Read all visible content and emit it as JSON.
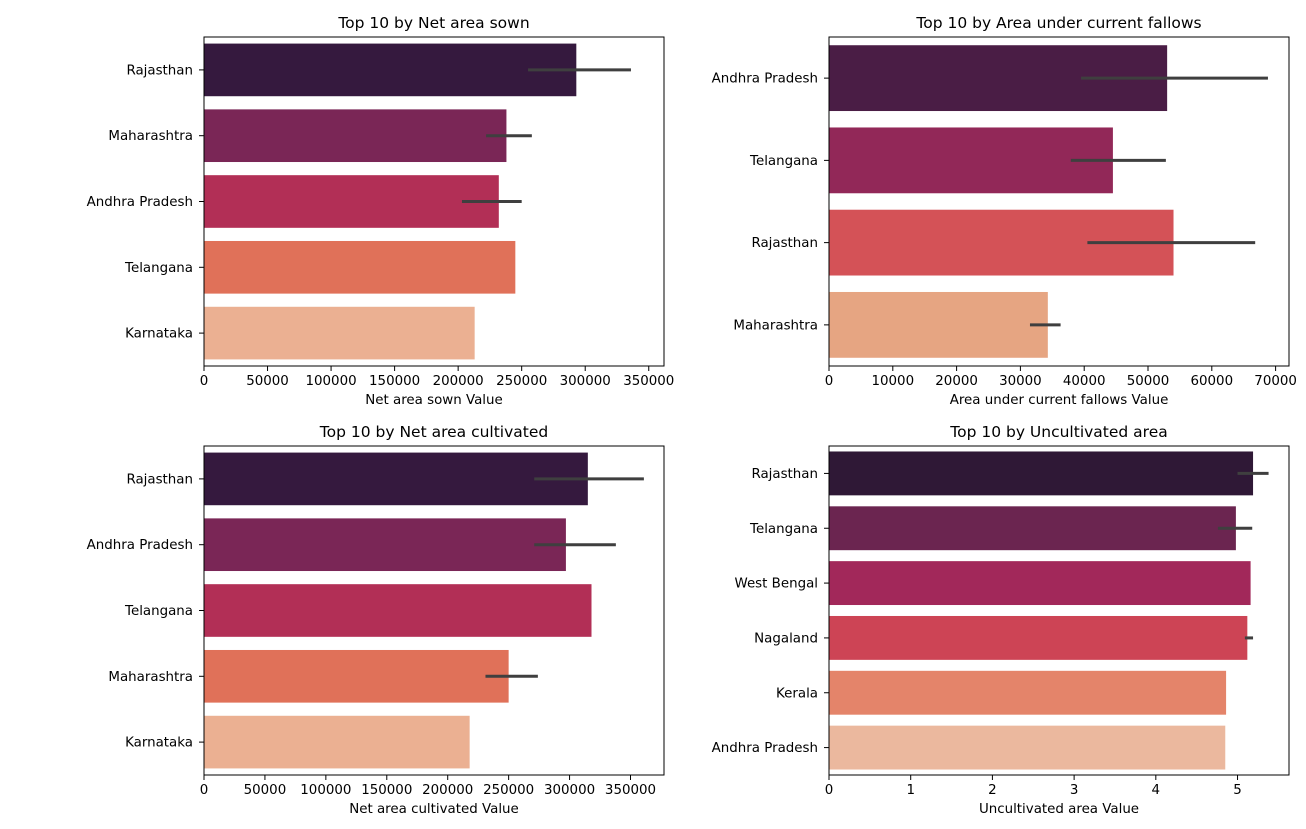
{
  "chart_data": [
    {
      "type": "bar",
      "orientation": "horizontal",
      "title": "Top 10 by Net area sown",
      "xlabel": "Net area sown Value",
      "ylabel": "",
      "categories": [
        "Rajasthan",
        "Maharashtra",
        "Andhra Pradesh",
        "Telangana",
        "Karnataka"
      ],
      "values": [
        293000,
        238000,
        232000,
        245000,
        213000
      ],
      "error_bars": [
        [
          255000,
          336000
        ],
        [
          222000,
          258000
        ],
        [
          203000,
          250000
        ],
        null,
        null
      ],
      "xlim": [
        0,
        362000
      ],
      "xticks": [
        0,
        50000,
        100000,
        150000,
        200000,
        250000,
        300000,
        350000
      ],
      "colors": [
        "#35193e",
        "#7a2656",
        "#b22f56",
        "#e07159",
        "#ebb092"
      ],
      "grid": false,
      "legend": "none"
    },
    {
      "type": "bar",
      "orientation": "horizontal",
      "title": "Top 10 by Area under current fallows",
      "xlabel": "Area under current fallows Value",
      "ylabel": "",
      "categories": [
        "Andhra Pradesh",
        "Telangana",
        "Rajasthan",
        "Maharashtra"
      ],
      "values": [
        53000,
        44500,
        54000,
        34300
      ],
      "error_bars": [
        [
          39500,
          68800
        ],
        [
          37900,
          52800
        ],
        [
          40500,
          66800
        ],
        [
          31500,
          36300
        ]
      ],
      "xlim": [
        0,
        72100
      ],
      "xticks": [
        0,
        10000,
        20000,
        30000,
        40000,
        50000,
        60000,
        70000
      ],
      "colors": [
        "#4a1d45",
        "#922858",
        "#d45257",
        "#e6a582"
      ],
      "grid": false,
      "legend": "none"
    },
    {
      "type": "bar",
      "orientation": "horizontal",
      "title": "Top 10 by Net area cultivated",
      "xlabel": "Net area cultivated Value",
      "ylabel": "",
      "categories": [
        "Rajasthan",
        "Andhra Pradesh",
        "Telangana",
        "Maharashtra",
        "Karnataka"
      ],
      "values": [
        315000,
        297000,
        318000,
        250000,
        218000
      ],
      "error_bars": [
        [
          271000,
          361000
        ],
        [
          271000,
          338000
        ],
        null,
        [
          231000,
          274000
        ],
        null
      ],
      "xlim": [
        0,
        377500
      ],
      "xticks": [
        0,
        50000,
        100000,
        150000,
        200000,
        250000,
        300000,
        350000
      ],
      "colors": [
        "#35193e",
        "#7a2656",
        "#b22f56",
        "#e07159",
        "#ebb092"
      ],
      "grid": false,
      "legend": "none"
    },
    {
      "type": "bar",
      "orientation": "horizontal",
      "title": "Top 10 by Uncultivated area",
      "xlabel": "Uncultivated area  Value",
      "ylabel": "",
      "categories": [
        "Rajasthan",
        "Telangana",
        "West Bengal",
        "Nagaland",
        "Kerala",
        "Andhra Pradesh"
      ],
      "values": [
        5.19,
        4.98,
        5.16,
        5.12,
        4.86,
        4.85
      ],
      "error_bars": [
        [
          5.0,
          5.38
        ],
        [
          4.76,
          5.18
        ],
        null,
        [
          5.09,
          5.19
        ],
        null,
        null
      ],
      "xlim": [
        0,
        5.63
      ],
      "xticks": [
        0,
        1,
        2,
        3,
        4,
        5
      ],
      "colors": [
        "#2f1836",
        "#6b2550",
        "#a2285a",
        "#cd4455",
        "#e4846a",
        "#ebb89e"
      ],
      "grid": false,
      "legend": "none"
    }
  ]
}
